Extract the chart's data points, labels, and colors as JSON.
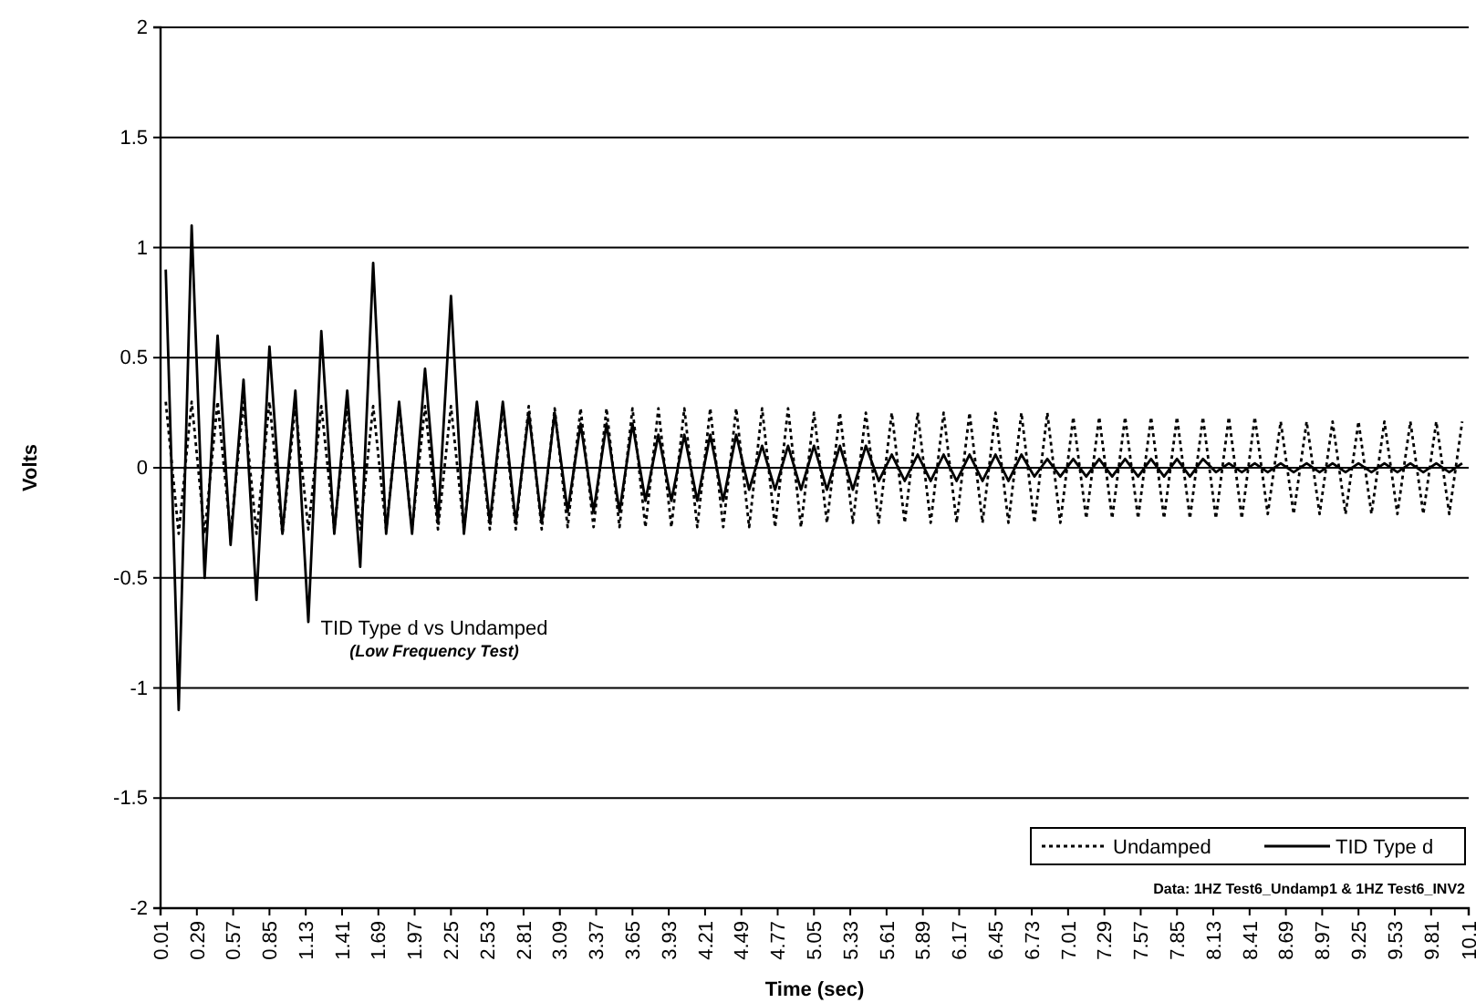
{
  "chart_data": {
    "type": "line",
    "xlabel": "Time (sec)",
    "ylabel": "Volts",
    "annotations": [
      "TID Type d vs Undamped",
      "(Low Frequency Test)",
      "Data: 1HZ Test6_Undamp1 & 1HZ Test6_INV2"
    ],
    "x": [
      0.05,
      0.15,
      0.25,
      0.35,
      0.45,
      0.55,
      0.65,
      0.75,
      0.85,
      0.95,
      1.05,
      1.15,
      1.25,
      1.35,
      1.45,
      1.55,
      1.65,
      1.75,
      1.85,
      1.95,
      2.05,
      2.15,
      2.25,
      2.35,
      2.45,
      2.55,
      2.65,
      2.75,
      2.85,
      2.95,
      3.05,
      3.15,
      3.25,
      3.35,
      3.45,
      3.55,
      3.65,
      3.75,
      3.85,
      3.95,
      4.05,
      4.15,
      4.25,
      4.35,
      4.45,
      4.55,
      4.65,
      4.75,
      4.85,
      4.95,
      5.05,
      5.15,
      5.25,
      5.35,
      5.45,
      5.55,
      5.65,
      5.75,
      5.85,
      5.95,
      6.05,
      6.15,
      6.25,
      6.35,
      6.45,
      6.55,
      6.65,
      6.75,
      6.85,
      6.95,
      7.05,
      7.15,
      7.25,
      7.35,
      7.45,
      7.55,
      7.65,
      7.75,
      7.85,
      7.95,
      8.05,
      8.15,
      8.25,
      8.35,
      8.45,
      8.55,
      8.65,
      8.75,
      8.85,
      8.95,
      9.05,
      9.15,
      9.25,
      9.35,
      9.45,
      9.55,
      9.65,
      9.75,
      9.85,
      9.95,
      10.05
    ],
    "series": [
      {
        "name": "Undamped",
        "color": "#000000",
        "line_style": "dotted",
        "values": [
          0.3,
          -0.3,
          0.3,
          -0.3,
          0.3,
          -0.3,
          0.3,
          -0.3,
          0.3,
          -0.3,
          0.28,
          -0.28,
          0.28,
          -0.28,
          0.28,
          -0.28,
          0.28,
          -0.28,
          0.28,
          -0.28,
          0.28,
          -0.28,
          0.28,
          -0.28,
          0.28,
          -0.28,
          0.28,
          -0.28,
          0.28,
          -0.28,
          0.27,
          -0.27,
          0.27,
          -0.27,
          0.27,
          -0.27,
          0.27,
          -0.27,
          0.27,
          -0.27,
          0.27,
          -0.27,
          0.27,
          -0.27,
          0.27,
          -0.27,
          0.27,
          -0.27,
          0.27,
          -0.27,
          0.25,
          -0.25,
          0.25,
          -0.25,
          0.25,
          -0.25,
          0.25,
          -0.25,
          0.25,
          -0.25,
          0.25,
          -0.25,
          0.25,
          -0.25,
          0.25,
          -0.25,
          0.25,
          -0.25,
          0.25,
          -0.25,
          0.23,
          -0.23,
          0.23,
          -0.23,
          0.23,
          -0.23,
          0.23,
          -0.23,
          0.23,
          -0.23,
          0.23,
          -0.23,
          0.23,
          -0.23,
          0.23,
          -0.21,
          0.21,
          -0.21,
          0.21,
          -0.21,
          0.21,
          -0.21,
          0.21,
          -0.21,
          0.21,
          -0.21,
          0.21,
          -0.21,
          0.21,
          -0.21,
          0.21
        ]
      },
      {
        "name": "TID Type d",
        "color": "#000000",
        "line_style": "solid",
        "values": [
          0.9,
          -1.1,
          1.1,
          -0.5,
          0.6,
          -0.35,
          0.4,
          -0.6,
          0.55,
          -0.3,
          0.35,
          -0.7,
          0.62,
          -0.3,
          0.35,
          -0.45,
          0.93,
          -0.3,
          0.3,
          -0.3,
          0.45,
          -0.25,
          0.78,
          -0.3,
          0.3,
          -0.25,
          0.3,
          -0.25,
          0.25,
          -0.25,
          0.25,
          -0.2,
          0.2,
          -0.2,
          0.2,
          -0.2,
          0.2,
          -0.15,
          0.15,
          -0.15,
          0.15,
          -0.15,
          0.15,
          -0.15,
          0.15,
          -0.1,
          0.1,
          -0.1,
          0.1,
          -0.1,
          0.1,
          -0.1,
          0.1,
          -0.1,
          0.1,
          -0.06,
          0.06,
          -0.06,
          0.06,
          -0.06,
          0.06,
          -0.06,
          0.06,
          -0.06,
          0.06,
          -0.06,
          0.06,
          -0.04,
          0.04,
          -0.04,
          0.04,
          -0.04,
          0.04,
          -0.04,
          0.04,
          -0.04,
          0.04,
          -0.04,
          0.04,
          -0.04,
          0.04,
          -0.02,
          0.02,
          -0.02,
          0.02,
          -0.02,
          0.02,
          -0.02,
          0.02,
          -0.02,
          0.02,
          -0.02,
          0.02,
          -0.02,
          0.02,
          -0.02,
          0.02,
          -0.02,
          0.02,
          -0.02,
          0.02
        ]
      }
    ],
    "xlim": [
      0.01,
      10.1
    ],
    "xticks": [
      0.01,
      0.29,
      0.57,
      0.85,
      1.13,
      1.41,
      1.69,
      1.97,
      2.25,
      2.53,
      2.81,
      3.09,
      3.37,
      3.65,
      3.93,
      4.21,
      4.49,
      4.77,
      5.05,
      5.33,
      5.61,
      5.89,
      6.17,
      6.45,
      6.73,
      7.01,
      7.29,
      7.57,
      7.85,
      8.13,
      8.41,
      8.69,
      8.97,
      9.25,
      9.53,
      9.81,
      10.1
    ],
    "ylim": [
      -2,
      2
    ],
    "yticks": [
      -2,
      -1.5,
      -1,
      -0.5,
      0,
      0.5,
      1,
      1.5,
      2
    ],
    "grid": "y",
    "legend": "bottom right"
  }
}
